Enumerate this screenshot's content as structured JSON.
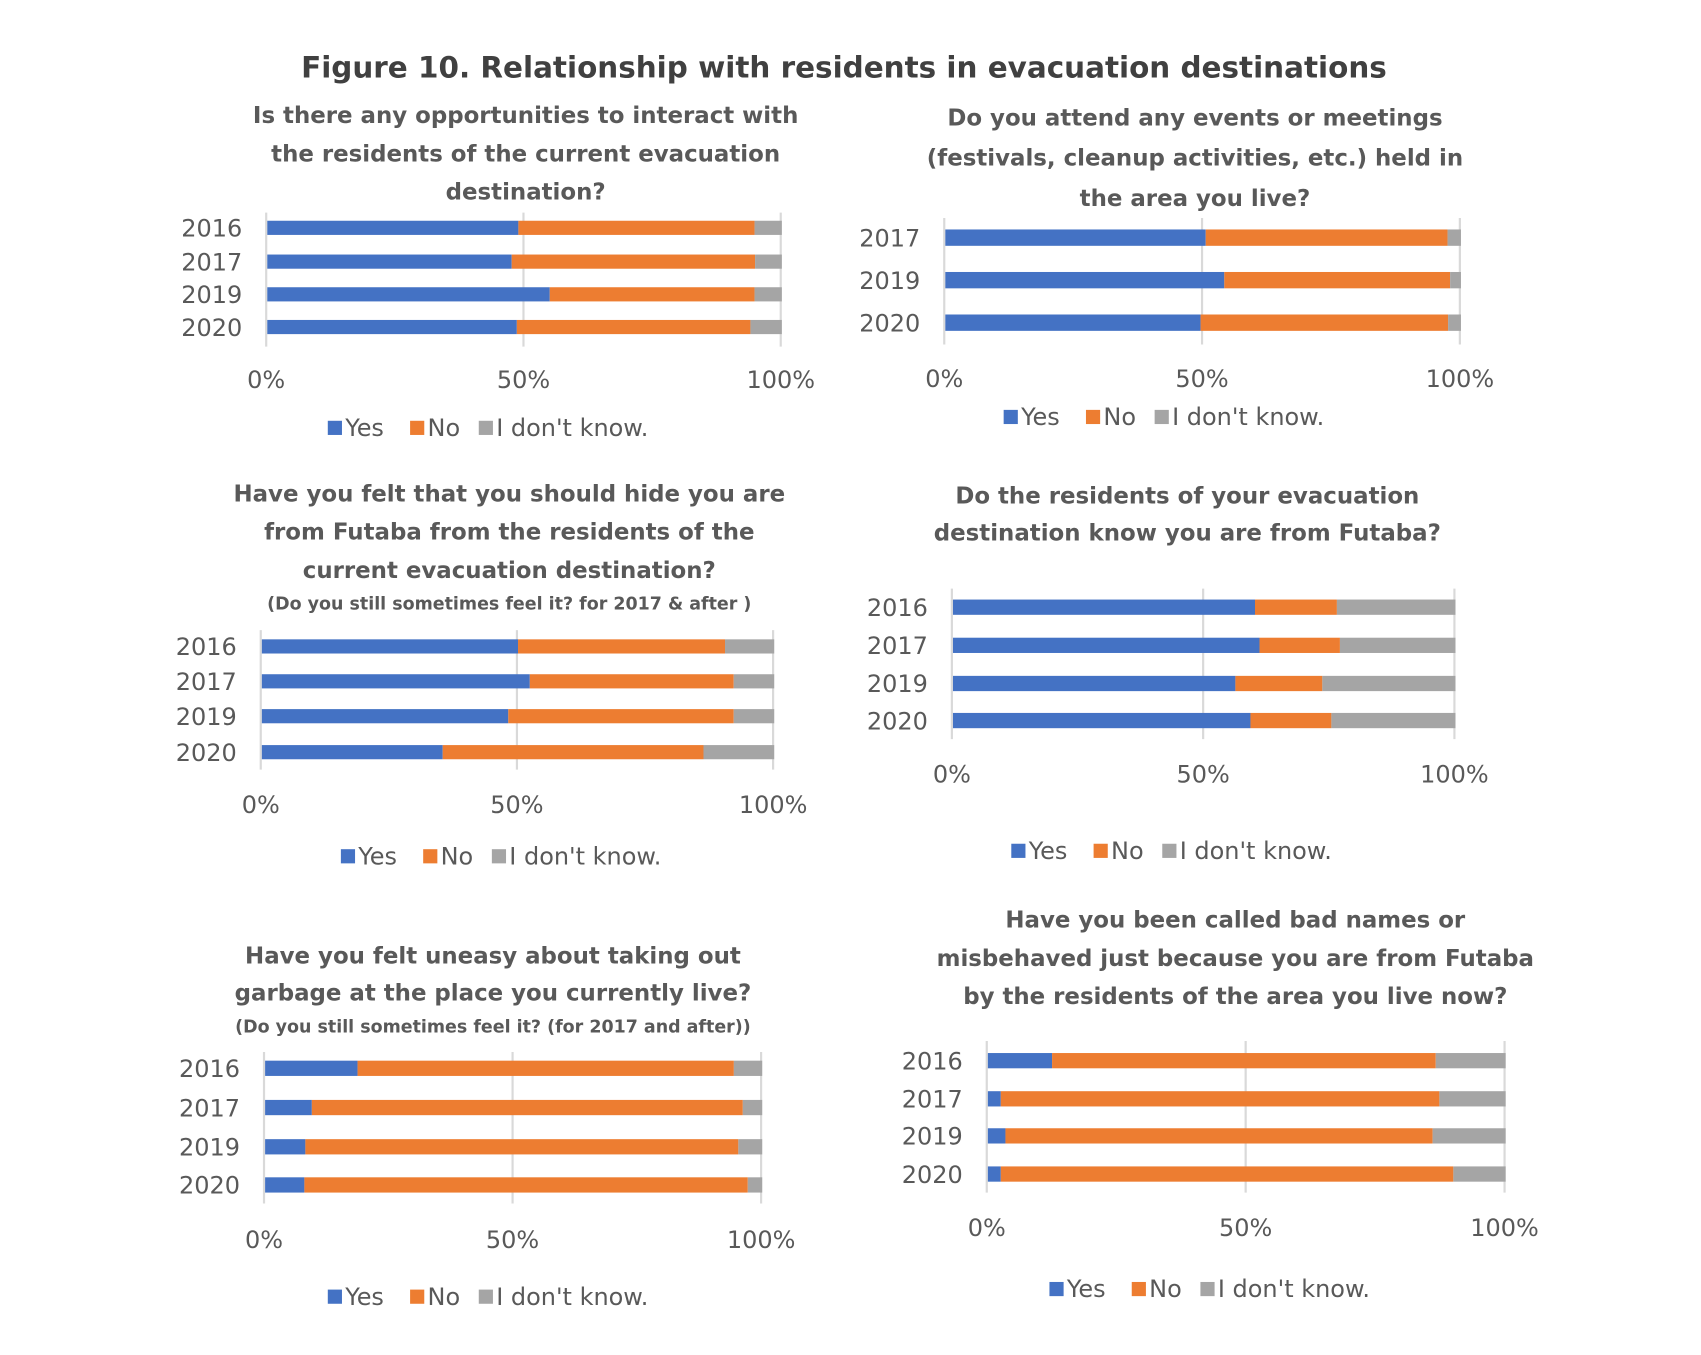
{
  "title": "Figure 10. Relationship with residents in evacuation destinations",
  "colors": {
    "Yes": "#4472C4",
    "No": "#ED7D31",
    "I don't know.": "#A5A5A5",
    "grid": "#D9D9D9"
  },
  "chart_data": [
    {
      "type": "bar",
      "orientation": "horizontal",
      "stacked": "100%",
      "title_lines": [
        "Is there any opportunities to interact with",
        "the residents of the current evacuation",
        "destination?"
      ],
      "subtitle": "",
      "categories": [
        "2016",
        "2017",
        "2019",
        "2020"
      ],
      "series": [
        {
          "name": "Yes",
          "values": [
            48.8,
            47.5,
            54.9,
            48.5
          ]
        },
        {
          "name": "No",
          "values": [
            45.9,
            47.3,
            39.8,
            45.4
          ]
        },
        {
          "name": "I don't know.",
          "values": [
            5.3,
            5.2,
            5.3,
            6.1
          ]
        }
      ],
      "xticks": [
        "0%",
        "50%",
        "100%"
      ],
      "xlim": [
        0,
        100
      ],
      "grid": true,
      "legend": "bottom"
    },
    {
      "type": "bar",
      "orientation": "horizontal",
      "stacked": "100%",
      "title_lines": [
        "Do you attend any events or meetings",
        "(festivals, cleanup activities, etc.) held in",
        "the area you live?"
      ],
      "subtitle": "",
      "categories": [
        "2017",
        "2019",
        "2020"
      ],
      "series": [
        {
          "name": "Yes",
          "values": [
            50.5,
            54.1,
            49.5
          ]
        },
        {
          "name": "No",
          "values": [
            46.9,
            43.8,
            48.0
          ]
        },
        {
          "name": "I don't know.",
          "values": [
            2.6,
            2.1,
            2.5
          ]
        }
      ],
      "xticks": [
        "0%",
        "50%",
        "100%"
      ],
      "xlim": [
        0,
        100
      ],
      "grid": true,
      "legend": "bottom"
    },
    {
      "type": "bar",
      "orientation": "horizontal",
      "stacked": "100%",
      "title_lines": [
        "Have you felt that you should hide you are",
        "from Futaba from the residents of the",
        "current evacuation destination?"
      ],
      "subtitle": "(Do you still sometimes feel it? for 2017 & after )",
      "categories": [
        "2016",
        "2017",
        "2019",
        "2020"
      ],
      "series": [
        {
          "name": "Yes",
          "values": [
            50.0,
            52.3,
            48.1,
            35.3
          ]
        },
        {
          "name": "No",
          "values": [
            40.4,
            39.8,
            44.0,
            50.9
          ]
        },
        {
          "name": "I don't know.",
          "values": [
            9.6,
            7.9,
            7.9,
            13.8
          ]
        }
      ],
      "xticks": [
        "0%",
        "50%",
        "100%"
      ],
      "xlim": [
        0,
        100
      ],
      "grid": true,
      "legend": "bottom"
    },
    {
      "type": "bar",
      "orientation": "horizontal",
      "stacked": "100%",
      "title_lines": [
        "Do the residents of your evacuation",
        "destination know you are from Futaba?"
      ],
      "subtitle": "",
      "categories": [
        "2016",
        "2017",
        "2019",
        "2020"
      ],
      "series": [
        {
          "name": "Yes",
          "values": [
            60.1,
            61.0,
            56.2,
            59.2
          ]
        },
        {
          "name": "No",
          "values": [
            16.3,
            16.0,
            17.3,
            16.1
          ]
        },
        {
          "name": "I don't know.",
          "values": [
            23.6,
            23.0,
            26.5,
            24.7
          ]
        }
      ],
      "xticks": [
        "0%",
        "50%",
        "100%"
      ],
      "xlim": [
        0,
        100
      ],
      "grid": true,
      "legend": "bottom"
    },
    {
      "type": "bar",
      "orientation": "horizontal",
      "stacked": "100%",
      "title_lines": [
        "Have you felt uneasy about taking out",
        "garbage at the place you currently live?"
      ],
      "subtitle": "(Do you still sometimes feel it? (for 2017 and after))",
      "categories": [
        "2016",
        "2017",
        "2019",
        "2020"
      ],
      "series": [
        {
          "name": "Yes",
          "values": [
            18.6,
            9.4,
            8.1,
            7.9
          ]
        },
        {
          "name": "No",
          "values": [
            75.7,
            86.7,
            87.1,
            89.2
          ]
        },
        {
          "name": "I don't know.",
          "values": [
            5.7,
            3.9,
            4.8,
            2.9
          ]
        }
      ],
      "xticks": [
        "0%",
        "50%",
        "100%"
      ],
      "xlim": [
        0,
        100
      ],
      "grid": true,
      "legend": "bottom"
    },
    {
      "type": "bar",
      "orientation": "horizontal",
      "stacked": "100%",
      "title_lines": [
        "Have you been called bad names or",
        "misbehaved  just because you are from Futaba",
        "by the residents of the area you live now?"
      ],
      "subtitle": "",
      "categories": [
        "2016",
        "2017",
        "2019",
        "2020"
      ],
      "series": [
        {
          "name": "Yes",
          "values": [
            12.4,
            2.5,
            3.4,
            2.5
          ]
        },
        {
          "name": "No",
          "values": [
            74.1,
            84.7,
            82.5,
            87.4
          ]
        },
        {
          "name": "I don't know.",
          "values": [
            13.5,
            12.8,
            14.1,
            10.1
          ]
        }
      ],
      "xticks": [
        "0%",
        "50%",
        "100%"
      ],
      "xlim": [
        0,
        100
      ],
      "grid": true,
      "legend": "bottom"
    }
  ]
}
